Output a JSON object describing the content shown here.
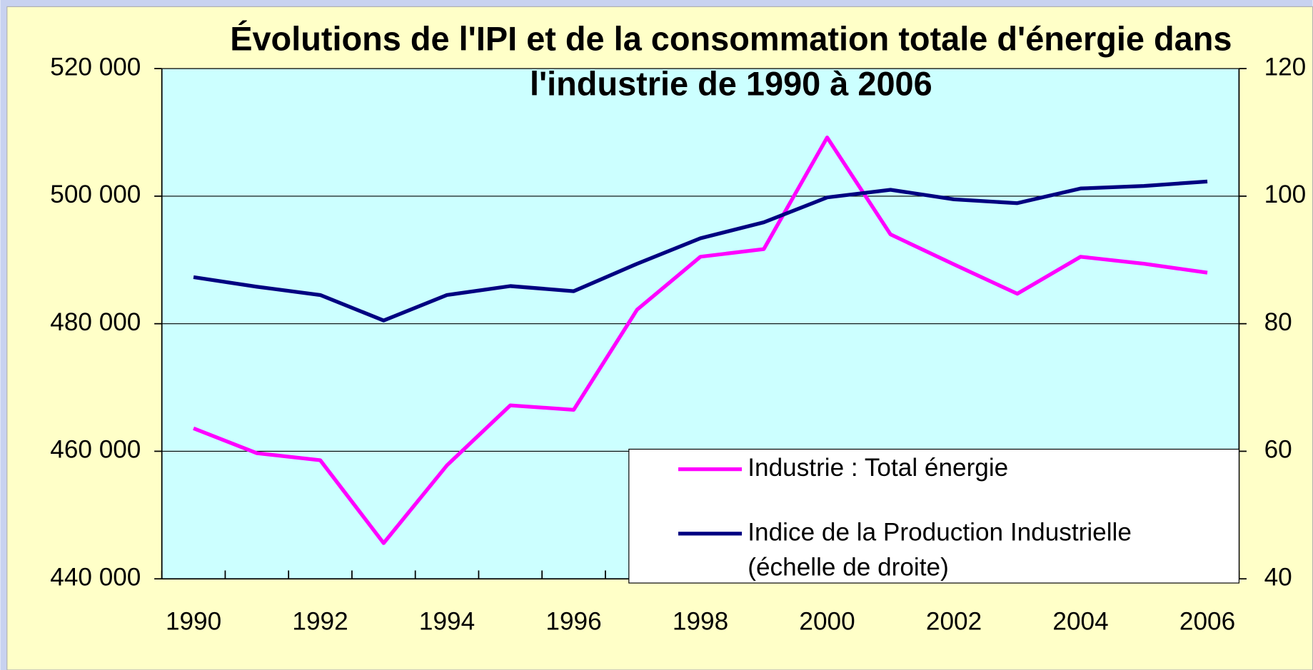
{
  "chart_data": {
    "type": "line",
    "title": "Évolutions de l'IPI et de la consommation totale d'énergie dans l'industrie de 1990 à 2006",
    "categories": [
      "1990",
      null,
      "1992",
      null,
      "1994",
      null,
      "1996",
      null,
      "1998",
      null,
      "2000",
      null,
      "2002",
      null,
      "2004",
      null,
      "2006"
    ],
    "series": [
      {
        "name": "Industrie : Total énergie",
        "color": "#ff00ff",
        "axis": "y",
        "values": [
          463600,
          459700,
          458600,
          445600,
          457800,
          467200,
          466500,
          482200,
          490500,
          491700,
          509200,
          494000,
          489300,
          484700,
          490500,
          489400,
          488000
        ]
      },
      {
        "name": "Indice de la Production Industrielle (échelle de droite)",
        "color": "#000080",
        "axis": "y2",
        "values": [
          87.3,
          85.8,
          84.5,
          80.5,
          84.5,
          85.9,
          85.1,
          89.4,
          93.4,
          95.9,
          99.8,
          101.0,
          99.5,
          98.9,
          101.2,
          101.6,
          102.3
        ]
      }
    ],
    "ylim": [
      440000,
      520000
    ],
    "yticks": [
      {
        "value": 440000,
        "label": "440 000"
      },
      {
        "value": 460000,
        "label": "460 000"
      },
      {
        "value": 480000,
        "label": "480 000"
      },
      {
        "value": 500000,
        "label": "500 000"
      },
      {
        "value": 520000,
        "label": "520 000"
      }
    ],
    "y2lim": [
      40,
      120
    ],
    "y2ticks": [
      40,
      60,
      80,
      100,
      120
    ],
    "grid": true,
    "legend": "bottom-right"
  }
}
